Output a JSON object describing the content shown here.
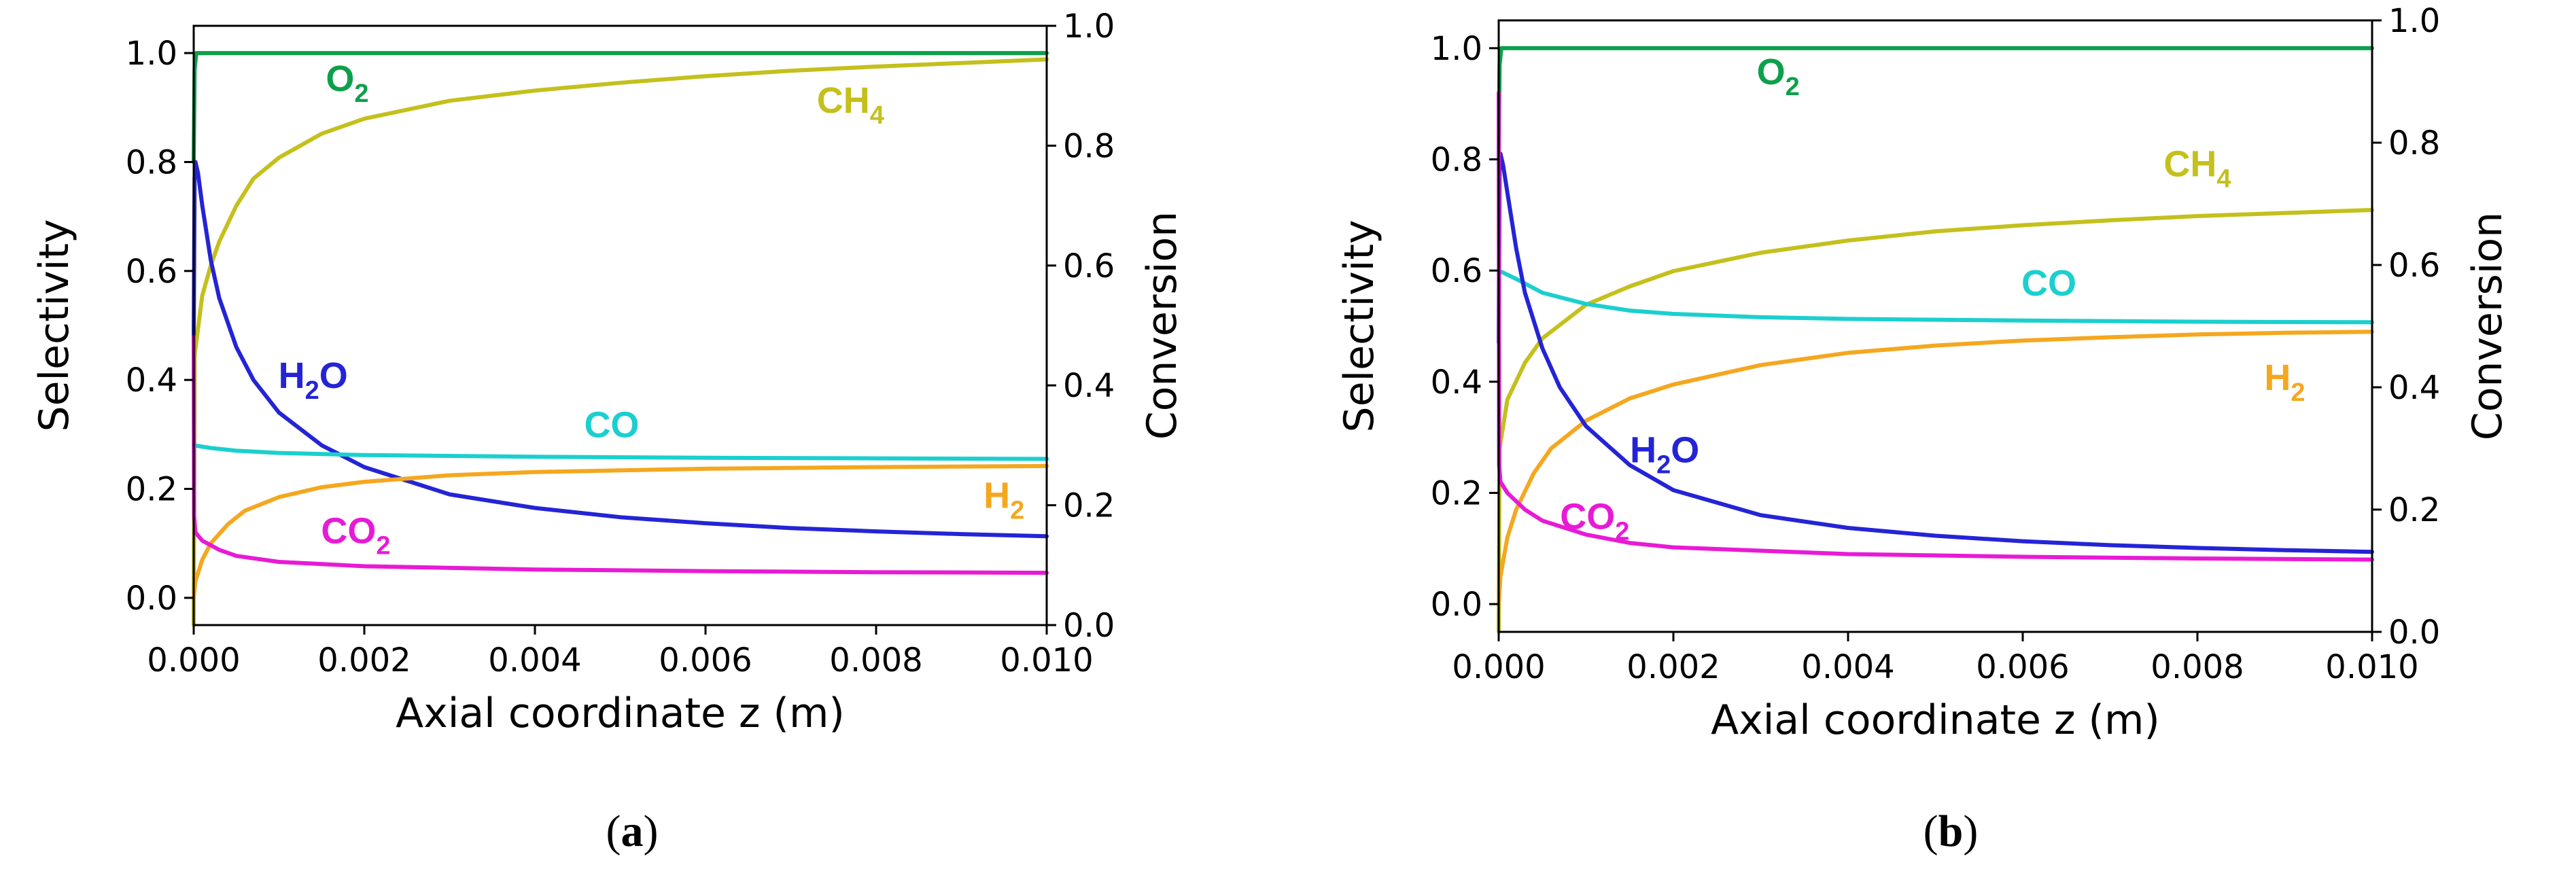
{
  "chart_data": [
    {
      "type": "line",
      "caption": {
        "open": "(",
        "letter": "a",
        "close": ")"
      },
      "xlabel": "Axial coordinate z (m)",
      "ylabel": "Selectivity",
      "y2label": "Conversion",
      "xlim": [
        0,
        0.01
      ],
      "ylim": [
        -0.05,
        1.05
      ],
      "y2lim": [
        0.0,
        1.0
      ],
      "xticks": [
        "0.000",
        "0.002",
        "0.004",
        "0.006",
        "0.008",
        "0.010"
      ],
      "yticks": [
        "0.0",
        "0.2",
        "0.4",
        "0.6",
        "0.8",
        "1.0"
      ],
      "y2ticks": [
        "0.0",
        "0.2",
        "0.4",
        "0.6",
        "0.8",
        "1.0"
      ],
      "series": [
        {
          "name": "O2",
          "base": "O",
          "sub": "2",
          "color": "#0DA04A",
          "axis": "left",
          "points": [
            [
              0,
              0.8
            ],
            [
              1e-05,
              0.97
            ],
            [
              3e-05,
              1.0
            ],
            [
              0.0001,
              1.0
            ],
            [
              0.002,
              1.0
            ],
            [
              0.005,
              1.0
            ],
            [
              0.01,
              1.0
            ]
          ],
          "label_pos": [
            0.0018,
            0.93
          ]
        },
        {
          "name": "CH4",
          "base": "CH",
          "sub": "4",
          "color": "#C4C01C",
          "axis": "right",
          "points": [
            [
              0,
              0.0
            ],
            [
              1e-05,
              0.45
            ],
            [
              0.0001,
              0.55
            ],
            [
              0.0002,
              0.6
            ],
            [
              0.0003,
              0.64
            ],
            [
              0.0005,
              0.7
            ],
            [
              0.0007,
              0.745
            ],
            [
              0.001,
              0.78
            ],
            [
              0.0015,
              0.82
            ],
            [
              0.002,
              0.845
            ],
            [
              0.003,
              0.875
            ],
            [
              0.004,
              0.892
            ],
            [
              0.005,
              0.905
            ],
            [
              0.006,
              0.916
            ],
            [
              0.007,
              0.925
            ],
            [
              0.008,
              0.932
            ],
            [
              0.009,
              0.938
            ],
            [
              0.01,
              0.944
            ]
          ],
          "label_pos": [
            0.0077,
            0.855
          ]
        },
        {
          "name": "H2O",
          "base": "H",
          "sub": "2",
          "tail": "O",
          "color": "#2424D6",
          "axis": "left",
          "points": [
            [
              0,
              0.47
            ],
            [
              1e-05,
              0.77
            ],
            [
              2e-05,
              0.8
            ],
            [
              5e-05,
              0.78
            ],
            [
              0.0001,
              0.72
            ],
            [
              0.0002,
              0.62
            ],
            [
              0.0003,
              0.55
            ],
            [
              0.0005,
              0.46
            ],
            [
              0.0007,
              0.4
            ],
            [
              0.001,
              0.34
            ],
            [
              0.0015,
              0.28
            ],
            [
              0.002,
              0.24
            ],
            [
              0.003,
              0.19
            ],
            [
              0.004,
              0.165
            ],
            [
              0.005,
              0.148
            ],
            [
              0.006,
              0.137
            ],
            [
              0.007,
              0.128
            ],
            [
              0.008,
              0.122
            ],
            [
              0.009,
              0.117
            ],
            [
              0.01,
              0.113
            ]
          ],
          "label_pos": [
            0.0014,
            0.385
          ]
        },
        {
          "name": "CO",
          "base": "CO",
          "sub": "",
          "color": "#1CCFCF",
          "axis": "left",
          "points": [
            [
              0,
              0.28
            ],
            [
              0.0002,
              0.275
            ],
            [
              0.0005,
              0.27
            ],
            [
              0.001,
              0.266
            ],
            [
              0.002,
              0.262
            ],
            [
              0.004,
              0.259
            ],
            [
              0.006,
              0.257
            ],
            [
              0.008,
              0.256
            ],
            [
              0.01,
              0.255
            ]
          ],
          "label_pos": [
            0.0049,
            0.295
          ]
        },
        {
          "name": "H2",
          "base": "H",
          "sub": "2",
          "color": "#F5A71E",
          "axis": "left",
          "points": [
            [
              0,
              0.0
            ],
            [
              2e-05,
              0.03
            ],
            [
              0.0001,
              0.07
            ],
            [
              0.0002,
              0.1
            ],
            [
              0.0004,
              0.135
            ],
            [
              0.0006,
              0.16
            ],
            [
              0.001,
              0.185
            ],
            [
              0.0015,
              0.203
            ],
            [
              0.002,
              0.213
            ],
            [
              0.003,
              0.225
            ],
            [
              0.004,
              0.231
            ],
            [
              0.006,
              0.237
            ],
            [
              0.008,
              0.24
            ],
            [
              0.01,
              0.242
            ]
          ],
          "label_pos": [
            0.0095,
            0.165
          ]
        },
        {
          "name": "CO2",
          "base": "CO",
          "sub": "2",
          "color": "#E81AD6",
          "axis": "left",
          "points": [
            [
              0,
              0.48
            ],
            [
              5e-06,
              0.15
            ],
            [
              2e-05,
              0.12
            ],
            [
              0.0001,
              0.105
            ],
            [
              0.0003,
              0.088
            ],
            [
              0.0005,
              0.077
            ],
            [
              0.001,
              0.066
            ],
            [
              0.002,
              0.058
            ],
            [
              0.004,
              0.052
            ],
            [
              0.006,
              0.049
            ],
            [
              0.008,
              0.047
            ],
            [
              0.01,
              0.046
            ]
          ],
          "label_pos": [
            0.0019,
            0.1
          ]
        }
      ]
    },
    {
      "type": "line",
      "caption": {
        "open": "(",
        "letter": "b",
        "close": ")"
      },
      "xlabel": "Axial coordinate z (m)",
      "ylabel": "Selectivity",
      "y2label": "Conversion",
      "xlim": [
        0,
        0.01
      ],
      "ylim": [
        -0.05,
        1.05
      ],
      "y2lim": [
        0.0,
        1.0
      ],
      "xticks": [
        "0.000",
        "0.002",
        "0.004",
        "0.006",
        "0.008",
        "0.010"
      ],
      "yticks": [
        "0.0",
        "0.2",
        "0.4",
        "0.6",
        "0.8",
        "1.0"
      ],
      "y2ticks": [
        "0.0",
        "0.2",
        "0.4",
        "0.6",
        "0.8",
        "1.0"
      ],
      "series": [
        {
          "name": "O2",
          "base": "O",
          "sub": "2",
          "color": "#0DA04A",
          "axis": "left",
          "points": [
            [
              0,
              0.8
            ],
            [
              1e-05,
              0.97
            ],
            [
              3e-05,
              1.0
            ],
            [
              0.0001,
              1.0
            ],
            [
              0.002,
              1.0
            ],
            [
              0.005,
              1.0
            ],
            [
              0.01,
              1.0
            ]
          ],
          "label_pos": [
            0.0032,
            0.935
          ]
        },
        {
          "name": "CH4",
          "base": "CH",
          "sub": "4",
          "color": "#C4C01C",
          "axis": "right",
          "points": [
            [
              0,
              0.0
            ],
            [
              1e-05,
              0.3
            ],
            [
              0.0001,
              0.38
            ],
            [
              0.0003,
              0.44
            ],
            [
              0.0005,
              0.48
            ],
            [
              0.001,
              0.535
            ],
            [
              0.0015,
              0.565
            ],
            [
              0.002,
              0.59
            ],
            [
              0.003,
              0.62
            ],
            [
              0.004,
              0.64
            ],
            [
              0.005,
              0.655
            ],
            [
              0.006,
              0.665
            ],
            [
              0.007,
              0.673
            ],
            [
              0.008,
              0.68
            ],
            [
              0.009,
              0.685
            ],
            [
              0.01,
              0.69
            ]
          ],
          "label_pos": [
            0.008,
            0.745
          ]
        },
        {
          "name": "CO",
          "base": "CO",
          "sub": "",
          "color": "#1CCFCF",
          "axis": "left",
          "points": [
            [
              0,
              0.6
            ],
            [
              0.0002,
              0.585
            ],
            [
              0.0005,
              0.56
            ],
            [
              0.001,
              0.54
            ],
            [
              0.0015,
              0.528
            ],
            [
              0.002,
              0.522
            ],
            [
              0.003,
              0.516
            ],
            [
              0.004,
              0.513
            ],
            [
              0.006,
              0.51
            ],
            [
              0.008,
              0.508
            ],
            [
              0.01,
              0.507
            ]
          ],
          "label_pos": [
            0.0063,
            0.555
          ]
        },
        {
          "name": "H2",
          "base": "H",
          "sub": "2",
          "color": "#F5A71E",
          "axis": "left",
          "points": [
            [
              0,
              0.0
            ],
            [
              2e-05,
              0.05
            ],
            [
              0.0001,
              0.12
            ],
            [
              0.0002,
              0.17
            ],
            [
              0.0004,
              0.235
            ],
            [
              0.0006,
              0.28
            ],
            [
              0.001,
              0.33
            ],
            [
              0.0015,
              0.37
            ],
            [
              0.002,
              0.395
            ],
            [
              0.003,
              0.43
            ],
            [
              0.004,
              0.452
            ],
            [
              0.005,
              0.465
            ],
            [
              0.006,
              0.474
            ],
            [
              0.007,
              0.48
            ],
            [
              0.008,
              0.485
            ],
            [
              0.009,
              0.488
            ],
            [
              0.01,
              0.49
            ]
          ],
          "label_pos": [
            0.009,
            0.385
          ]
        },
        {
          "name": "H2O",
          "base": "H",
          "sub": "2",
          "tail": "O",
          "color": "#2424D6",
          "axis": "left",
          "points": [
            [
              0,
              0.47
            ],
            [
              1e-05,
              0.79
            ],
            [
              2e-05,
              0.81
            ],
            [
              5e-05,
              0.79
            ],
            [
              0.0001,
              0.74
            ],
            [
              0.0002,
              0.64
            ],
            [
              0.0003,
              0.56
            ],
            [
              0.0005,
              0.46
            ],
            [
              0.0007,
              0.39
            ],
            [
              0.001,
              0.32
            ],
            [
              0.0015,
              0.25
            ],
            [
              0.002,
              0.205
            ],
            [
              0.003,
              0.16
            ],
            [
              0.004,
              0.137
            ],
            [
              0.005,
              0.123
            ],
            [
              0.006,
              0.113
            ],
            [
              0.007,
              0.106
            ],
            [
              0.008,
              0.101
            ],
            [
              0.009,
              0.097
            ],
            [
              0.01,
              0.094
            ]
          ],
          "label_pos": [
            0.0019,
            0.255
          ]
        },
        {
          "name": "CO2",
          "base": "CO",
          "sub": "2",
          "color": "#E81AD6",
          "axis": "left",
          "points": [
            [
              0,
              0.92
            ],
            [
              5e-06,
              0.25
            ],
            [
              2e-05,
              0.22
            ],
            [
              0.0001,
              0.2
            ],
            [
              0.0003,
              0.17
            ],
            [
              0.0005,
              0.15
            ],
            [
              0.001,
              0.125
            ],
            [
              0.0015,
              0.11
            ],
            [
              0.002,
              0.102
            ],
            [
              0.004,
              0.09
            ],
            [
              0.006,
              0.085
            ],
            [
              0.008,
              0.082
            ],
            [
              0.01,
              0.08
            ]
          ],
          "label_pos": [
            0.0011,
            0.135
          ]
        }
      ]
    }
  ]
}
